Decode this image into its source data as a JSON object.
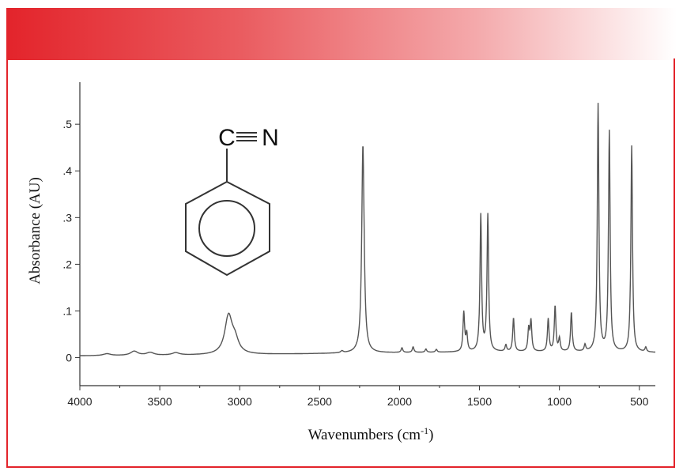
{
  "chart_data": {
    "type": "line",
    "xlabel": "Wavenumbers (cm",
    "xlabel_sup": "-1",
    "xlabel_close": ")",
    "ylabel": "Absorbance (AU)",
    "xlim": [
      4000,
      400
    ],
    "ylim": [
      -0.06,
      0.59
    ],
    "x_ticks": [
      4000,
      3500,
      3000,
      2500,
      2000,
      1500,
      1000,
      500
    ],
    "x_tick_labels": [
      "4000",
      "3500",
      "3000",
      "2500",
      "2000",
      "1500",
      "1000",
      "500"
    ],
    "y_ticks": [
      0,
      0.1,
      0.2,
      0.3,
      0.4,
      0.5
    ],
    "y_tick_labels": [
      "0",
      ".1",
      ".2",
      ".3",
      ".4",
      ".5"
    ],
    "grid": false,
    "series_color": "#555555",
    "baseline": 0.008,
    "peaks": [
      {
        "x": 3830,
        "y": 0.012
      },
      {
        "x": 3660,
        "y": 0.017
      },
      {
        "x": 3560,
        "y": 0.014
      },
      {
        "x": 3400,
        "y": 0.013
      },
      {
        "x": 3070,
        "y": 0.088
      },
      {
        "x": 3030,
        "y": 0.035
      },
      {
        "x": 2360,
        "y": 0.012
      },
      {
        "x": 2229,
        "y": 0.455
      },
      {
        "x": 1985,
        "y": 0.018
      },
      {
        "x": 1915,
        "y": 0.02
      },
      {
        "x": 1835,
        "y": 0.015
      },
      {
        "x": 1770,
        "y": 0.014
      },
      {
        "x": 1598,
        "y": 0.092
      },
      {
        "x": 1580,
        "y": 0.045
      },
      {
        "x": 1492,
        "y": 0.3
      },
      {
        "x": 1448,
        "y": 0.3
      },
      {
        "x": 1335,
        "y": 0.022
      },
      {
        "x": 1287,
        "y": 0.08
      },
      {
        "x": 1192,
        "y": 0.055
      },
      {
        "x": 1178,
        "y": 0.072
      },
      {
        "x": 1070,
        "y": 0.078
      },
      {
        "x": 1027,
        "y": 0.105
      },
      {
        "x": 1000,
        "y": 0.035
      },
      {
        "x": 925,
        "y": 0.092
      },
      {
        "x": 840,
        "y": 0.022
      },
      {
        "x": 758,
        "y": 0.538
      },
      {
        "x": 688,
        "y": 0.48
      },
      {
        "x": 548,
        "y": 0.45
      },
      {
        "x": 460,
        "y": 0.018
      }
    ]
  },
  "structure": {
    "carbon_label": "C",
    "nitrogen_label": "N"
  }
}
